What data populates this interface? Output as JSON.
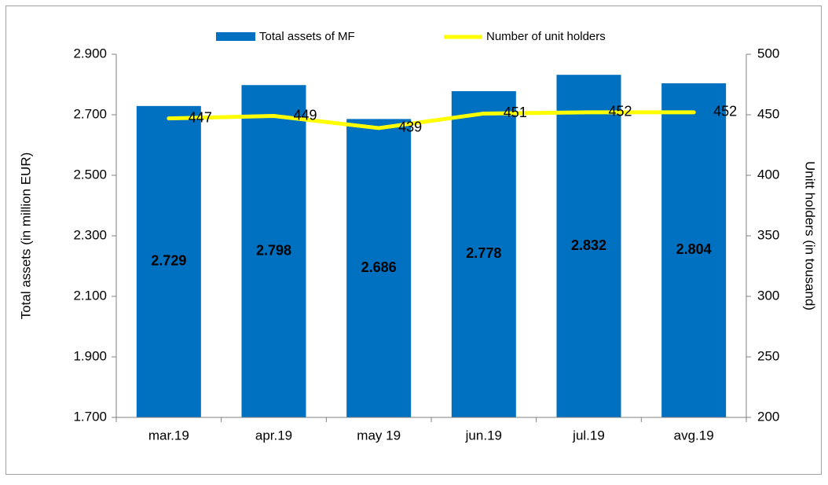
{
  "chart_data": {
    "type": "bar_line",
    "categories": [
      "mar.19",
      "apr.19",
      "may 19",
      "jun.19",
      "jul.19",
      "avg.19"
    ],
    "series": [
      {
        "name": "Total assets of MF",
        "type": "bar",
        "color": "#0070c0",
        "axis": "y",
        "values": [
          2729,
          2798,
          2686,
          2778,
          2832,
          2804
        ],
        "value_labels": [
          "2.729",
          "2.798",
          "2.686",
          "2.778",
          "2.832",
          "2.804"
        ]
      },
      {
        "name": "Number of unit holders",
        "type": "line",
        "color": "#ffff00",
        "axis": "y2",
        "values": [
          447,
          449,
          439,
          451,
          452,
          452
        ]
      }
    ],
    "ylabel": "Total assets (in million EUR)",
    "y2label": "Unitt holders (in tousand)",
    "ylim": [
      1700,
      2900
    ],
    "yticks": [
      {
        "value": 1700,
        "label": "1.700"
      },
      {
        "value": 1900,
        "label": "1.900"
      },
      {
        "value": 2100,
        "label": "2.100"
      },
      {
        "value": 2300,
        "label": "2.300"
      },
      {
        "value": 2500,
        "label": "2.500"
      },
      {
        "value": 2700,
        "label": "2.700"
      },
      {
        "value": 2900,
        "label": "2.900"
      }
    ],
    "y2lim": [
      200,
      500
    ],
    "y2ticks": [
      200,
      250,
      300,
      350,
      400,
      450,
      500
    ],
    "legend": "top"
  }
}
